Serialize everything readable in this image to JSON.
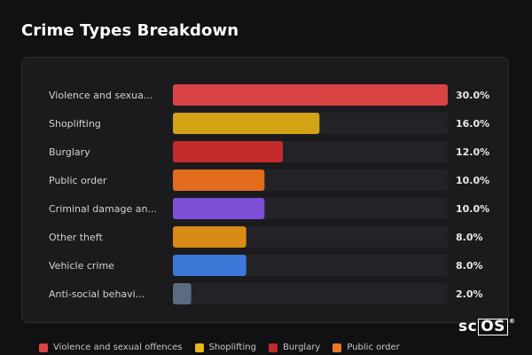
{
  "title": "Crime Types Breakdown",
  "logo": {
    "prefix": "sc",
    "boxed": "OS",
    "reg": "®"
  },
  "colors": {
    "track": "#232327",
    "background": "#111113",
    "panel": "#1b1b1e"
  },
  "chart_data": {
    "type": "bar",
    "orientation": "horizontal",
    "categories": [
      "Violence and sexua...",
      "Shoplifting",
      "Burglary",
      "Public order",
      "Criminal damage an...",
      "Other theft",
      "Vehicle crime",
      "Anti-social behavi..."
    ],
    "values": [
      30.0,
      16.0,
      12.0,
      10.0,
      10.0,
      8.0,
      8.0,
      2.0
    ],
    "value_labels": [
      "30.0%",
      "16.0%",
      "12.0%",
      "10.0%",
      "10.0%",
      "8.0%",
      "8.0%",
      "2.0%"
    ],
    "colors": [
      "#d94343",
      "#d2a314",
      "#c52a2a",
      "#e06c1c",
      "#7b4fd6",
      "#d98b18",
      "#3b78d8",
      "#5b6b80"
    ],
    "xlim": [
      0,
      30
    ],
    "legend": [
      {
        "label": "Violence and sexual offences",
        "color": "#d94343"
      },
      {
        "label": "Shoplifting",
        "color": "#e6b81c"
      },
      {
        "label": "Burglary",
        "color": "#c52a2a"
      },
      {
        "label": "Public order",
        "color": "#e67a22"
      }
    ]
  }
}
